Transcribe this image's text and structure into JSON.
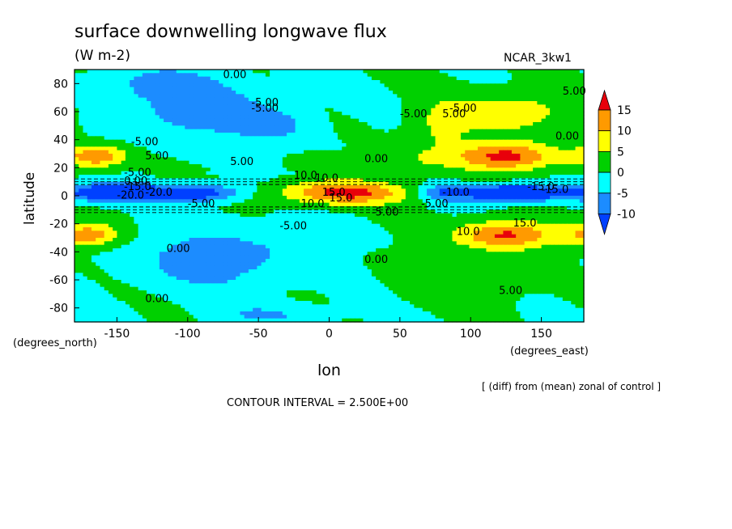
{
  "chart_data": {
    "type": "heatmap",
    "title": "surface downwelling longwave flux",
    "units": "(W m-2)",
    "model": "NCAR_3kw1",
    "xlabel": "lon",
    "ylabel": "latitude",
    "x_unit_label": "(degrees_east)",
    "y_unit_label": "(degrees_north)",
    "xlim": [
      -180,
      180
    ],
    "ylim": [
      -90,
      90
    ],
    "xticks": [
      -150,
      -100,
      -50,
      0,
      50,
      100,
      150
    ],
    "yticks": [
      80,
      60,
      40,
      20,
      0,
      -20,
      -40,
      -60,
      -80
    ],
    "annotation": "[ (diff) from (mean) zonal of control ]",
    "contour_interval": "CONTOUR INTERVAL = 2.500E+00",
    "colorbar": {
      "labels": [
        "15",
        "10",
        "5",
        "0",
        "-5",
        "-10"
      ],
      "colors": [
        "#e8000b",
        "#ff9a00",
        "#ffff00",
        "#00d000",
        "#00ffff",
        "#1c8cff",
        "#0040ff"
      ]
    },
    "contour_labels": [
      "0.00",
      "-5.00",
      "-5.00",
      "5.00",
      "10.0",
      "-5.00",
      "0.00",
      "-5.00",
      "0.00",
      "5.00",
      "10.0",
      "15.0",
      "-15.0",
      "-20.0",
      "-5.00",
      "10.0",
      "15.0",
      "-5.00",
      "-5.00",
      "0.00",
      "-10.0",
      "-15.0",
      "-15.0",
      "-5.00",
      "10.0",
      "5.00",
      "0.00",
      "15.0",
      "5.00",
      "0.00",
      "-5.00",
      "5.00",
      "-5.00",
      "0.00",
      "-20.0"
    ]
  }
}
